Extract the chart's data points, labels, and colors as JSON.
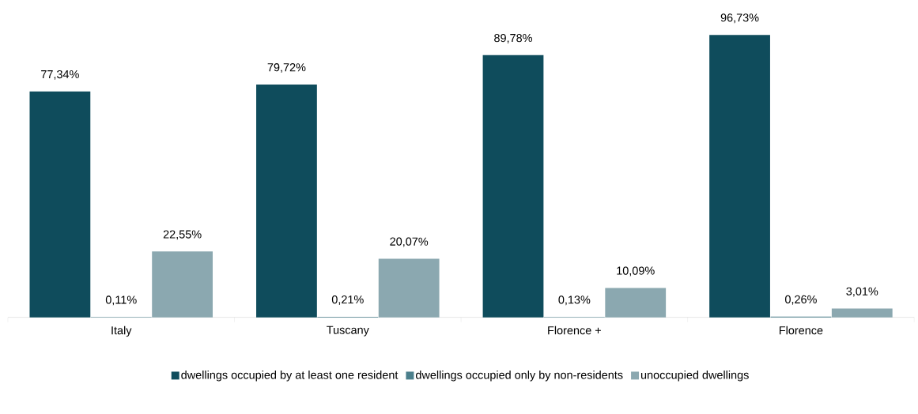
{
  "chart_data": {
    "type": "bar",
    "categories": [
      "Italy",
      "Tuscany",
      "Florence +",
      "Florence"
    ],
    "series": [
      {
        "name": "dwellings occupied by at least one resident",
        "color": "#0f4c5c",
        "values": [
          77.34,
          79.72,
          89.78,
          96.73
        ],
        "value_labels": [
          "77,34%",
          "79,72%",
          "89,78%",
          "96,73%"
        ]
      },
      {
        "name": "dwellings occupied only by non-residents",
        "color": "#4b7f8c",
        "values": [
          0.11,
          0.21,
          0.13,
          0.26
        ],
        "value_labels": [
          "0,11%",
          "0,21%",
          "0,13%",
          "0,26%"
        ]
      },
      {
        "name": "unoccupied dwellings",
        "color": "#8ba8b0",
        "values": [
          22.55,
          20.07,
          10.09,
          3.01
        ],
        "value_labels": [
          "22,55%",
          "20,07%",
          "10,09%",
          "3,01%"
        ]
      }
    ],
    "tick_labels": "x",
    "legend": "bottom"
  }
}
